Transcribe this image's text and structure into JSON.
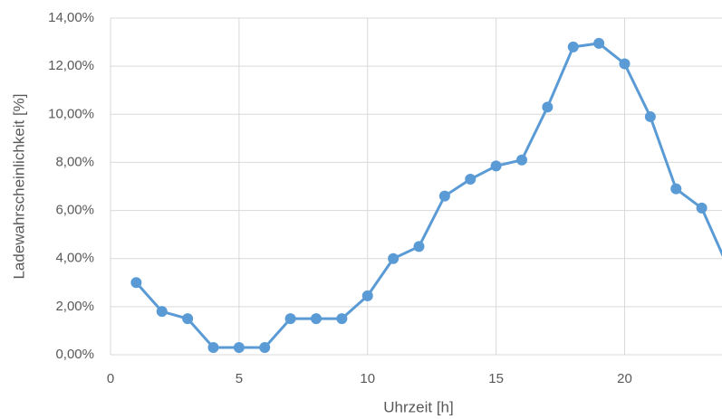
{
  "chart_data": {
    "type": "line",
    "x_label": "Uhrzeit [h]",
    "y_label": "Ladewahrscheinlichkeit [%]",
    "x": [
      1,
      2,
      3,
      4,
      5,
      6,
      7,
      8,
      9,
      10,
      11,
      12,
      13,
      14,
      15,
      16,
      17,
      18,
      19,
      20,
      21,
      22,
      23,
      24
    ],
    "series": [
      {
        "color": "#5b9bd5",
        "values": [
          3.0,
          1.8,
          1.5,
          0.3,
          0.3,
          0.3,
          1.5,
          1.5,
          1.5,
          2.45,
          4.0,
          4.5,
          6.6,
          7.3,
          7.85,
          8.1,
          10.3,
          12.8,
          12.95,
          12.1,
          9.9,
          6.9,
          6.1,
          3.7
        ]
      }
    ],
    "xlim": [
      0,
      24
    ],
    "xticks": [
      0,
      5,
      10,
      15,
      20
    ],
    "ylim": [
      0,
      14
    ],
    "yticks": [
      {
        "value": 0,
        "label": "0,00%"
      },
      {
        "value": 2,
        "label": "2,00%"
      },
      {
        "value": 4,
        "label": "4,00%"
      },
      {
        "value": 6,
        "label": "6,00%"
      },
      {
        "value": 8,
        "label": "8,00%"
      },
      {
        "value": 10,
        "label": "10,00%"
      },
      {
        "value": 12,
        "label": "12,00%"
      },
      {
        "value": 14,
        "label": "14,00%"
      }
    ],
    "grid": true
  }
}
